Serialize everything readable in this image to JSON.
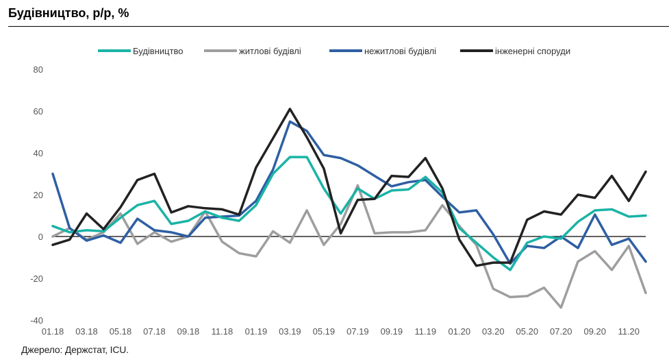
{
  "header": {
    "title": "Будівництво, р/р, %"
  },
  "footer": {
    "source": "Джерело: Держстат, ICU."
  },
  "chart_data": {
    "type": "line",
    "title": "Будівництво, р/р, %",
    "xlabel": "",
    "ylabel": "",
    "ylim": [
      -40,
      80
    ],
    "yticks": [
      80,
      60,
      40,
      20,
      0,
      -20,
      -40
    ],
    "grid": false,
    "legend_position": "top",
    "x": [
      "01.18",
      "02.18",
      "03.18",
      "04.18",
      "05.18",
      "06.18",
      "07.18",
      "08.18",
      "09.18",
      "10.18",
      "11.18",
      "12.18",
      "01.19",
      "02.19",
      "03.19",
      "04.19",
      "05.19",
      "06.19",
      "07.19",
      "08.19",
      "09.19",
      "10.19",
      "11.19",
      "12.19",
      "01.20",
      "02.20",
      "03.20",
      "04.20",
      "05.20",
      "06.20",
      "07.20",
      "08.20",
      "09.20",
      "10.20",
      "11.20",
      "12.20"
    ],
    "xtick_labels": [
      "01.18",
      "03.18",
      "05.18",
      "07.18",
      "09.18",
      "11.18",
      "01.19",
      "03.19",
      "05.19",
      "07.19",
      "09.19",
      "11.19",
      "01.20",
      "03.20",
      "05.20",
      "07.20",
      "09.20",
      "11.20"
    ],
    "series": [
      {
        "name": "Будівництво",
        "color": "#1ab3a6",
        "values": [
          5,
          2,
          3,
          2.5,
          9,
          15,
          17,
          6,
          7.5,
          12,
          9,
          7.5,
          15,
          30,
          38,
          38,
          23,
          11,
          23,
          18,
          22,
          22.5,
          28.5,
          21,
          4,
          -3,
          -10,
          -16,
          -3,
          0,
          -1,
          7,
          12.5,
          13,
          9.5,
          10
        ]
      },
      {
        "name": "житлові будівлі",
        "color": "#9e9e9e",
        "values": [
          0,
          4,
          -1.5,
          2,
          11,
          -3.5,
          2,
          -2.5,
          0,
          12,
          -2.5,
          -8,
          -9.5,
          2.5,
          -3,
          12.5,
          -4,
          6,
          24.5,
          1.5,
          2,
          2,
          3,
          15,
          5,
          -4,
          -25,
          -29,
          -28.5,
          -24.5,
          -34,
          -12,
          -7,
          -16,
          -4.5,
          -27
        ]
      },
      {
        "name": "нежитлові будівлі",
        "color": "#2e5fa3",
        "values": [
          30,
          4,
          -2,
          0.5,
          -3,
          8.5,
          3,
          2,
          0,
          9,
          9.5,
          10,
          17,
          32,
          55,
          50.5,
          39,
          37.5,
          34,
          29,
          24,
          26,
          27,
          19,
          11.5,
          12.5,
          1,
          -13,
          -4.5,
          -5.5,
          0,
          -5.5,
          10.5,
          -4,
          -1,
          -12
        ]
      },
      {
        "name": "інженерні споруди",
        "color": "#222222",
        "values": [
          -4,
          -1.5,
          11,
          3.5,
          14,
          27,
          30,
          11.5,
          14.5,
          13.5,
          13,
          10.5,
          33,
          47,
          61,
          47.5,
          32.5,
          1.5,
          17.5,
          18,
          29,
          28.5,
          37.5,
          23,
          -1.5,
          -14,
          -12.5,
          -12.5,
          8,
          12,
          10.5,
          20,
          18.5,
          29,
          17,
          31
        ]
      }
    ]
  }
}
